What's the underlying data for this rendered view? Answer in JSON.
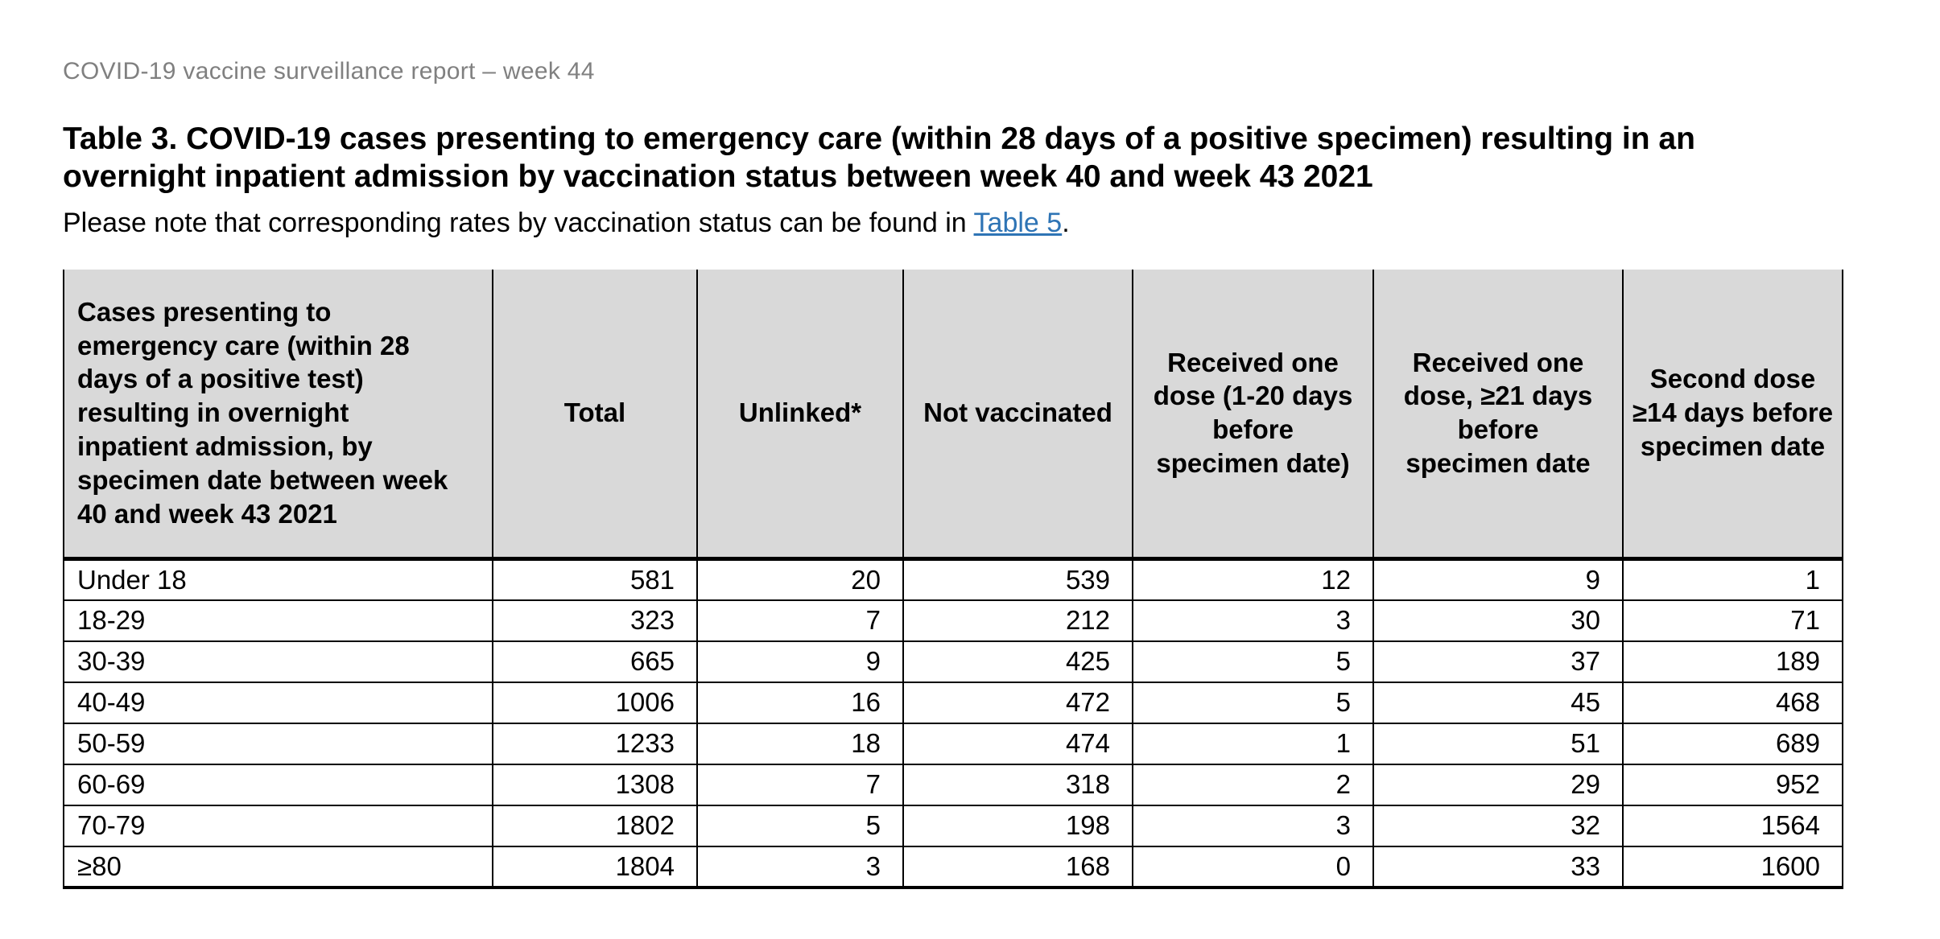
{
  "report_header": "COVID-19 vaccine surveillance report – week 44",
  "title": "Table 3. COVID-19 cases presenting to emergency care (within 28 days of a positive specimen) resulting in an\novernight inpatient admission by vaccination status between week 40 and week 43 2021",
  "note": {
    "prefix": "Please note that corresponding rates by vaccination status can be found in ",
    "link_label": "Table 5",
    "suffix": "."
  },
  "colors": {
    "muted_header_text": "#808080",
    "link": "#2e74b5",
    "table_header_bg": "#d9d9d9",
    "border": "#000000"
  },
  "table": {
    "columns": [
      "Cases presenting to\nemergency care (within 28\ndays of a positive test)\nresulting in overnight\ninpatient admission, by\nspecimen date between week\n40 and week 43 2021",
      "Total",
      "Unlinked*",
      "Not vaccinated",
      "Received one\ndose (1-20 days\nbefore\nspecimen date)",
      "Received one\ndose, ≥21 days\nbefore\nspecimen date",
      "Second dose\n≥14 days before\nspecimen date"
    ],
    "rows": [
      {
        "label": "Under 18",
        "values": [
          581,
          20,
          539,
          12,
          9,
          1
        ]
      },
      {
        "label": "18-29",
        "values": [
          323,
          7,
          212,
          3,
          30,
          71
        ]
      },
      {
        "label": "30-39",
        "values": [
          665,
          9,
          425,
          5,
          37,
          189
        ]
      },
      {
        "label": "40-49",
        "values": [
          1006,
          16,
          472,
          5,
          45,
          468
        ]
      },
      {
        "label": "50-59",
        "values": [
          1233,
          18,
          474,
          1,
          51,
          689
        ]
      },
      {
        "label": "60-69",
        "values": [
          1308,
          7,
          318,
          2,
          29,
          952
        ]
      },
      {
        "label": "70-79",
        "values": [
          1802,
          5,
          198,
          3,
          32,
          1564
        ]
      },
      {
        "label": "≥80",
        "values": [
          1804,
          3,
          168,
          0,
          33,
          1600
        ]
      }
    ]
  }
}
